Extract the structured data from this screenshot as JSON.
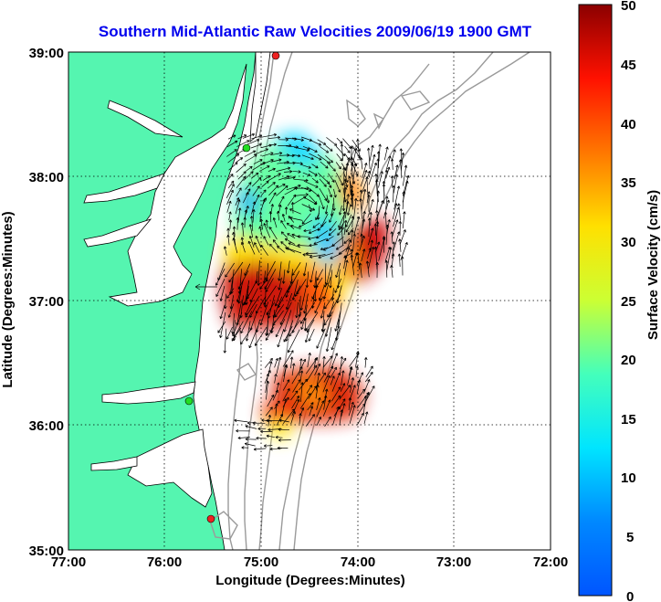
{
  "title": "Southern Mid-Atlantic Raw Velocities 2009/06/19 1900 GMT",
  "x_axis": {
    "label": "Longitude (Degrees:Minutes)",
    "ticks": [
      "77:00",
      "76:00",
      "75:00",
      "74:00",
      "73:00",
      "72:00"
    ]
  },
  "y_axis": {
    "label": "Latitude (Degrees:Minutes)",
    "ticks": [
      "39:00",
      "38:00",
      "37:00",
      "36:00",
      "35:00"
    ]
  },
  "colorbar": {
    "label": "Surface Velocity (cm/s)",
    "ticks": [
      "50",
      "45",
      "40",
      "35",
      "30",
      "25",
      "20",
      "15",
      "10",
      "5",
      "0"
    ],
    "min": 0,
    "max": 50
  },
  "colors": {
    "land": "#55f5b0",
    "coast": "#000000",
    "contour": "#999999",
    "title": "#0000ee",
    "site_green": "#22dd22",
    "site_red": "#ee2222"
  },
  "chart_data": {
    "type": "heatmap",
    "title": "Southern Mid-Atlantic Raw Velocities 2009/06/19 1900 GMT",
    "xlabel": "Longitude (Degrees:Minutes)",
    "ylabel": "Latitude (Degrees:Minutes)",
    "xlim_deg_west": [
      77,
      72
    ],
    "ylim_deg_north": [
      35,
      39
    ],
    "grid": true,
    "colorbar_range_cm_s": [
      0,
      50
    ],
    "regions": [
      {
        "lon": 75.3,
        "lat": 37.0,
        "speed": 48
      },
      {
        "lon": 75.0,
        "lat": 36.95,
        "speed": 46
      },
      {
        "lon": 74.8,
        "lat": 36.95,
        "speed": 40
      },
      {
        "lon": 74.55,
        "lat": 36.95,
        "speed": 30
      },
      {
        "lon": 74.4,
        "lat": 37.05,
        "speed": 26
      },
      {
        "lon": 75.0,
        "lat": 37.5,
        "speed": 17
      },
      {
        "lon": 74.7,
        "lat": 37.7,
        "speed": 19
      },
      {
        "lon": 74.45,
        "lat": 37.35,
        "speed": 12
      },
      {
        "lon": 74.1,
        "lat": 37.8,
        "speed": 38
      },
      {
        "lon": 74.05,
        "lat": 37.3,
        "speed": 44
      },
      {
        "lon": 74.6,
        "lat": 36.35,
        "speed": 42
      },
      {
        "lon": 74.25,
        "lat": 36.3,
        "speed": 40
      },
      {
        "lon": 74.9,
        "lat": 36.1,
        "speed": 47
      },
      {
        "lon": 74.75,
        "lat": 36.0,
        "speed": 28
      }
    ],
    "sites": [
      {
        "lon": 74.85,
        "lat": 38.95,
        "color": "red"
      },
      {
        "lon": 75.15,
        "lat": 38.25,
        "color": "green"
      },
      {
        "lon": 75.75,
        "lat": 36.2,
        "color": "green"
      },
      {
        "lon": 75.5,
        "lat": 35.3,
        "color": "red"
      }
    ]
  }
}
